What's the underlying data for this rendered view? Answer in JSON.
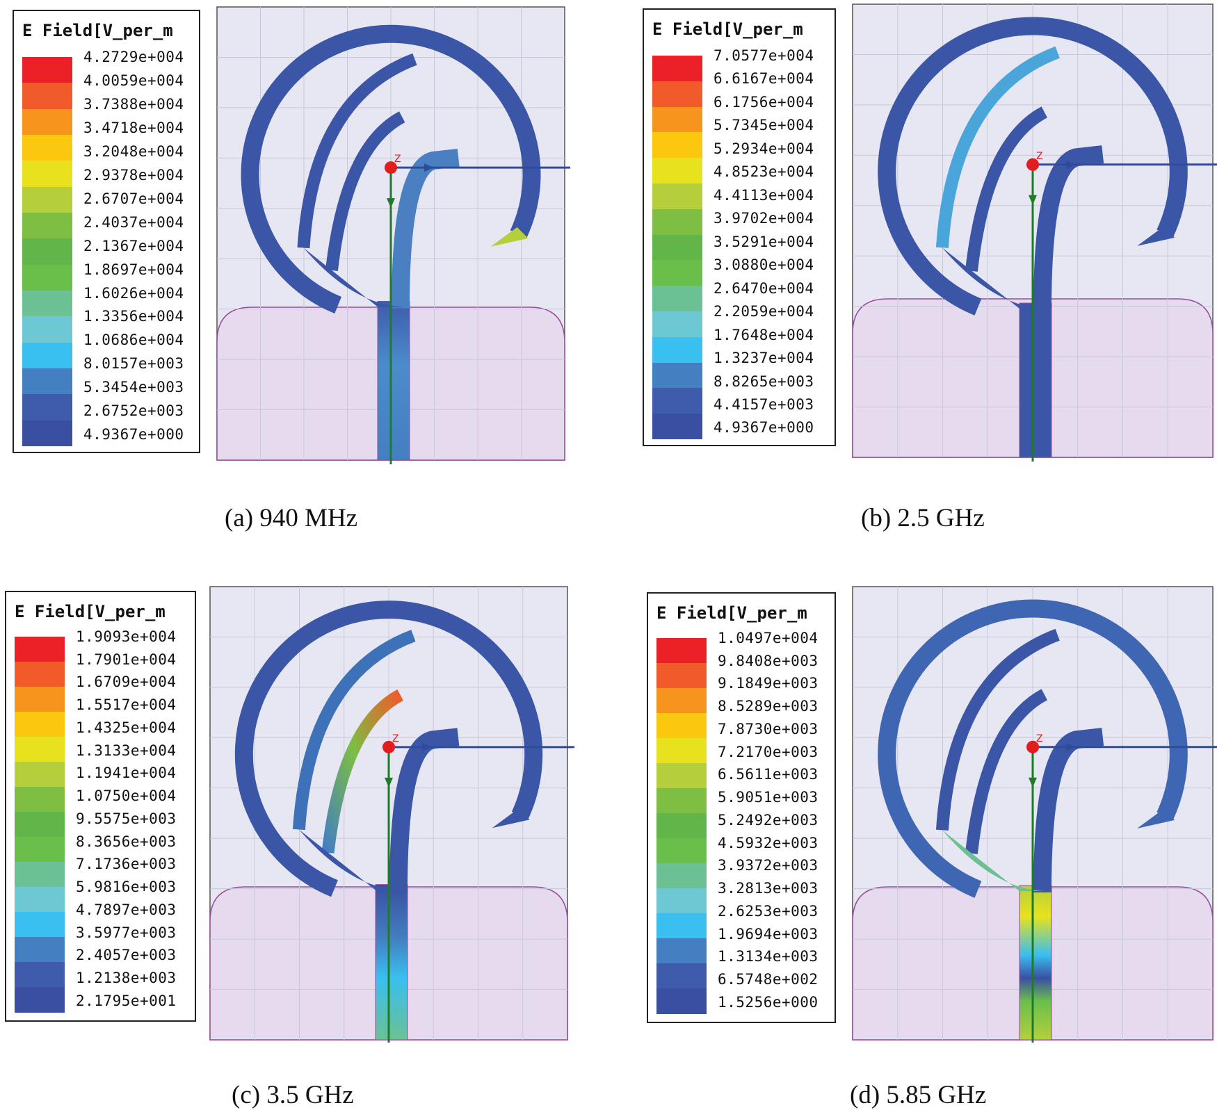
{
  "colors": {
    "background": "#e7e6f3",
    "ground": "#e6dbee",
    "ground_outline": "#9a4a9a",
    "antenna_blue": "#3b56a6",
    "axis_blue": "#2f4c9c",
    "axis_green": "#1f7a2a",
    "origin_red": "#e01e1e",
    "grid": "#c9c8d8"
  },
  "colormap": [
    "#3a4fa2",
    "#3e5cab",
    "#437fc1",
    "#39bff0",
    "#6dc8d3",
    "#6bc193",
    "#6abf4b",
    "#62b548",
    "#7dbe43",
    "#b5cf3c",
    "#e7e21d",
    "#fcc70f",
    "#f7941e",
    "#f15a29",
    "#ec2027"
  ],
  "panels": [
    {
      "id": "a",
      "legend_title": "E Field[V_per_m",
      "legend_values": [
        "4.2729e+004",
        "4.0059e+004",
        "3.7388e+004",
        "3.4718e+004",
        "3.2048e+004",
        "2.9378e+004",
        "2.6707e+004",
        "2.4037e+004",
        "2.1367e+004",
        "1.8697e+004",
        "1.6026e+004",
        "1.3356e+004",
        "1.0686e+004",
        "8.0157e+003",
        "5.3454e+003",
        "2.6752e+003",
        "4.9367e+000"
      ],
      "caption": "(a) 940 MHz",
      "origin_label": "Z"
    },
    {
      "id": "b",
      "legend_title": "E Field[V_per_m",
      "legend_values": [
        "7.0577e+004",
        "6.6167e+004",
        "6.1756e+004",
        "5.7345e+004",
        "5.2934e+004",
        "4.8523e+004",
        "4.4113e+004",
        "3.9702e+004",
        "3.5291e+004",
        "3.0880e+004",
        "2.6470e+004",
        "2.2059e+004",
        "1.7648e+004",
        "1.3237e+004",
        "8.8265e+003",
        "4.4157e+003",
        "4.9367e+000"
      ],
      "caption": "(b) 2.5 GHz",
      "origin_label": "Z"
    },
    {
      "id": "c",
      "legend_title": "E Field[V_per_m",
      "legend_values": [
        "1.9093e+004",
        "1.7901e+004",
        "1.6709e+004",
        "1.5517e+004",
        "1.4325e+004",
        "1.3133e+004",
        "1.1941e+004",
        "1.0750e+004",
        "9.5575e+003",
        "8.3656e+003",
        "7.1736e+003",
        "5.9816e+003",
        "4.7897e+003",
        "3.5977e+003",
        "2.4057e+003",
        "1.2138e+003",
        "2.1795e+001"
      ],
      "caption": "(c) 3.5 GHz",
      "origin_label": "Z"
    },
    {
      "id": "d",
      "legend_title": "E Field[V_per_m",
      "legend_values": [
        "1.0497e+004",
        "9.8408e+003",
        "9.1849e+003",
        "8.5289e+003",
        "7.8730e+003",
        "7.2170e+003",
        "6.5611e+003",
        "5.9051e+003",
        "5.2492e+003",
        "4.5932e+003",
        "3.9372e+003",
        "3.2813e+003",
        "2.6253e+003",
        "1.9694e+003",
        "1.3134e+003",
        "6.5748e+002",
        "1.5256e+000"
      ],
      "caption": "(d) 5.85 GHz",
      "origin_label": "Z"
    }
  ]
}
